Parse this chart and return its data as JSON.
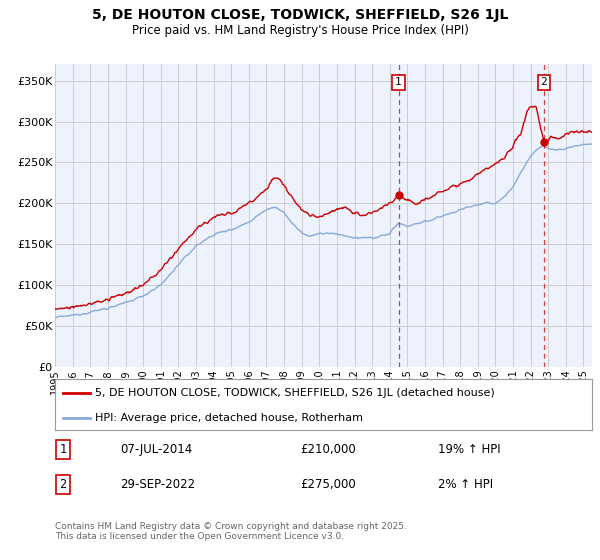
{
  "title": "5, DE HOUTON CLOSE, TODWICK, SHEFFIELD, S26 1JL",
  "subtitle": "Price paid vs. HM Land Registry's House Price Index (HPI)",
  "ylabel_ticks": [
    "£0",
    "£50K",
    "£100K",
    "£150K",
    "£200K",
    "£250K",
    "£300K",
    "£350K"
  ],
  "ytick_values": [
    0,
    50000,
    100000,
    150000,
    200000,
    250000,
    300000,
    350000
  ],
  "ylim": [
    0,
    370000
  ],
  "xlim_start": 1995.0,
  "xlim_end": 2025.5,
  "sale1_date": 2014.5,
  "sale1_price": 210000,
  "sale1_label": "1",
  "sale1_text": "07-JUL-2014",
  "sale1_hpi": "19% ↑ HPI",
  "sale2_date": 2022.75,
  "sale2_price": 275000,
  "sale2_label": "2",
  "sale2_text": "29-SEP-2022",
  "sale2_hpi": "2% ↑ HPI",
  "red_color": "#cc0000",
  "blue_color": "#88aadd",
  "bg_color": "#eef2fc",
  "grid_color": "#cccccc",
  "legend_label1": "5, DE HOUTON CLOSE, TODWICK, SHEFFIELD, S26 1JL (detached house)",
  "legend_label2": "HPI: Average price, detached house, Rotherham",
  "footer": "Contains HM Land Registry data © Crown copyright and database right 2025.\nThis data is licensed under the Open Government Licence v3.0."
}
